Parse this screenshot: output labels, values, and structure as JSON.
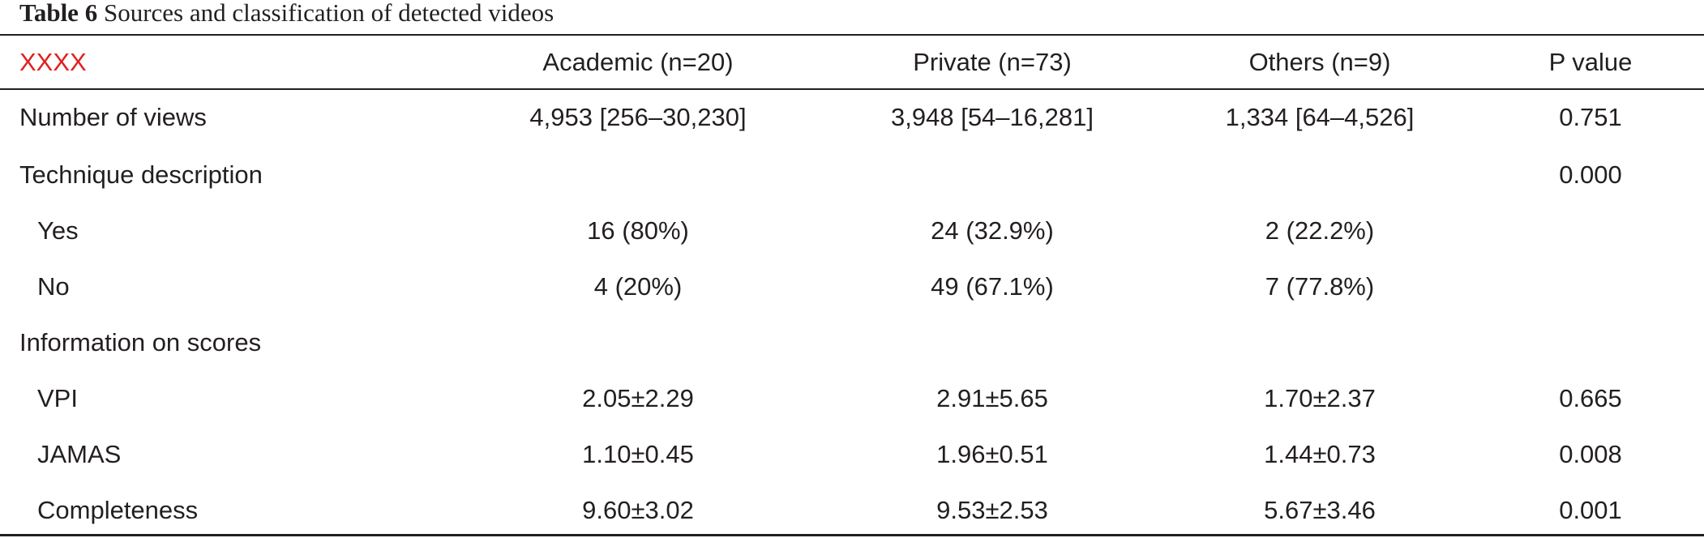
{
  "caption": {
    "label": "Table 6",
    "text": "Sources and classification of detected videos"
  },
  "header": {
    "col0": "XXXX",
    "col1": "Academic (n=20)",
    "col2": "Private (n=73)",
    "col3": "Others (n=9)",
    "col4": "P value"
  },
  "rows": [
    {
      "label": "Number of views",
      "academic": "4,953 [256–30,230]",
      "private": "3,948 [54–16,281]",
      "others": "1,334 [64–4,526]",
      "p": "0.751"
    },
    {
      "label": "Technique description",
      "academic": "",
      "private": "",
      "others": "",
      "p": "0.000"
    },
    {
      "label": "Yes",
      "academic": "16 (80%)",
      "private": "24 (32.9%)",
      "others": "2 (22.2%)",
      "p": ""
    },
    {
      "label": "No",
      "academic": "4 (20%)",
      "private": "49 (67.1%)",
      "others": "7 (77.8%)",
      "p": ""
    },
    {
      "label": "Information on scores",
      "academic": "",
      "private": "",
      "others": "",
      "p": ""
    },
    {
      "label": "VPI",
      "academic": "2.05±2.29",
      "private": "2.91±5.65",
      "others": "1.70±2.37",
      "p": "0.665"
    },
    {
      "label": "JAMAS",
      "academic": "1.10±0.45",
      "private": "1.96±0.51",
      "others": "1.44±0.73",
      "p": "0.008"
    },
    {
      "label": "Completeness",
      "academic": "9.60±3.02",
      "private": "9.53±2.53",
      "others": "5.67±3.46",
      "p": "0.001"
    }
  ],
  "colors": {
    "text": "#231f20",
    "header_first_cell": "#e02020"
  }
}
